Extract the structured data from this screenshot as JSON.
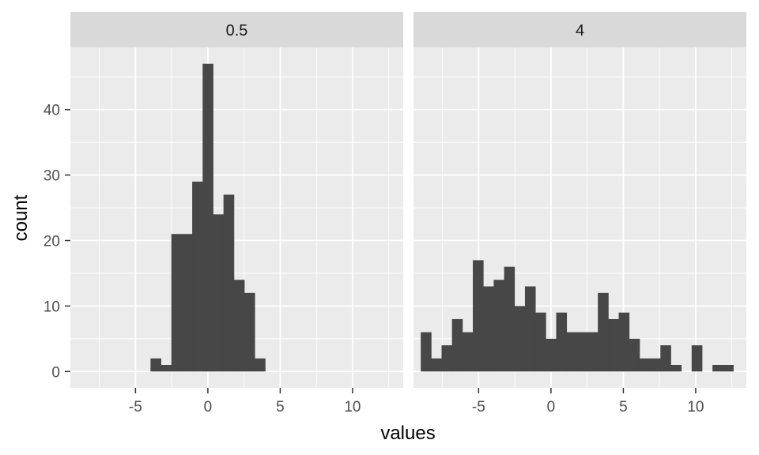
{
  "chart_data": {
    "type": "bar",
    "subtype": "faceted-histogram",
    "xlabel": "values",
    "ylabel": "count",
    "xlim": [
      -9.5,
      13.5
    ],
    "ylim": [
      -2.5,
      49.5
    ],
    "x_ticks": [
      -5,
      0,
      5,
      10
    ],
    "y_ticks": [
      0,
      10,
      20,
      30,
      40
    ],
    "grid": true,
    "colors": {
      "bar": "#474747",
      "panel": "#ebebeb",
      "strip": "#d9d9d9",
      "grid": "#ffffff"
    },
    "panels": [
      {
        "strip_label": "0.5",
        "bin_width": 0.72,
        "bins": [
          {
            "x0": -3.96,
            "x1": -3.24,
            "count": 2
          },
          {
            "x0": -3.24,
            "x1": -2.52,
            "count": 1
          },
          {
            "x0": -2.52,
            "x1": -1.8,
            "count": 21
          },
          {
            "x0": -1.8,
            "x1": -1.08,
            "count": 21
          },
          {
            "x0": -1.08,
            "x1": -0.36,
            "count": 29
          },
          {
            "x0": -0.36,
            "x1": 0.36,
            "count": 47
          },
          {
            "x0": 0.36,
            "x1": 1.08,
            "count": 24
          },
          {
            "x0": 1.08,
            "x1": 1.8,
            "count": 27
          },
          {
            "x0": 1.8,
            "x1": 2.52,
            "count": 14
          },
          {
            "x0": 2.52,
            "x1": 3.24,
            "count": 12
          },
          {
            "x0": 3.24,
            "x1": 3.96,
            "count": 2
          }
        ]
      },
      {
        "strip_label": "4",
        "bin_width": 0.72,
        "bins": [
          {
            "x0": -9.0,
            "x1": -8.28,
            "count": 6
          },
          {
            "x0": -8.28,
            "x1": -7.56,
            "count": 2
          },
          {
            "x0": -7.56,
            "x1": -6.84,
            "count": 4
          },
          {
            "x0": -6.84,
            "x1": -6.12,
            "count": 8
          },
          {
            "x0": -6.12,
            "x1": -5.4,
            "count": 6
          },
          {
            "x0": -5.4,
            "x1": -4.68,
            "count": 17
          },
          {
            "x0": -4.68,
            "x1": -3.96,
            "count": 13
          },
          {
            "x0": -3.96,
            "x1": -3.24,
            "count": 14
          },
          {
            "x0": -3.24,
            "x1": -2.52,
            "count": 16
          },
          {
            "x0": -2.52,
            "x1": -1.8,
            "count": 10
          },
          {
            "x0": -1.8,
            "x1": -1.08,
            "count": 13
          },
          {
            "x0": -1.08,
            "x1": -0.36,
            "count": 9
          },
          {
            "x0": -0.36,
            "x1": 0.36,
            "count": 5
          },
          {
            "x0": 0.36,
            "x1": 1.08,
            "count": 9
          },
          {
            "x0": 1.08,
            "x1": 1.8,
            "count": 6
          },
          {
            "x0": 1.8,
            "x1": 2.52,
            "count": 6
          },
          {
            "x0": 2.52,
            "x1": 3.24,
            "count": 6
          },
          {
            "x0": 3.24,
            "x1": 3.96,
            "count": 12
          },
          {
            "x0": 3.96,
            "x1": 4.68,
            "count": 8
          },
          {
            "x0": 4.68,
            "x1": 5.4,
            "count": 9
          },
          {
            "x0": 5.4,
            "x1": 6.12,
            "count": 5
          },
          {
            "x0": 6.12,
            "x1": 6.84,
            "count": 2
          },
          {
            "x0": 6.84,
            "x1": 7.56,
            "count": 2
          },
          {
            "x0": 7.56,
            "x1": 8.28,
            "count": 4
          },
          {
            "x0": 8.28,
            "x1": 9.0,
            "count": 1
          },
          {
            "x0": 9.0,
            "x1": 9.72,
            "count": 0
          },
          {
            "x0": 9.72,
            "x1": 10.44,
            "count": 4
          },
          {
            "x0": 10.44,
            "x1": 11.16,
            "count": 0
          },
          {
            "x0": 11.16,
            "x1": 11.88,
            "count": 1
          },
          {
            "x0": 11.88,
            "x1": 12.6,
            "count": 1
          }
        ]
      }
    ]
  }
}
